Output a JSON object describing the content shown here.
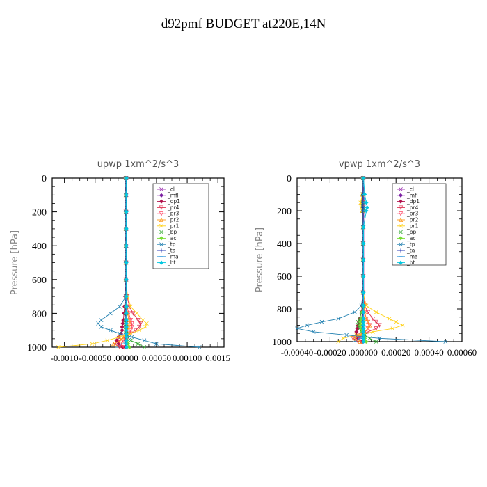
{
  "page": {
    "title": "d92pmf  BUDGET at220E,14N"
  },
  "chart_data": [
    {
      "type": "line",
      "title": "upwp   1xm^2/s^3",
      "ylabel": "Pressure [hPa]",
      "xlim": [
        -0.0012,
        0.0016
      ],
      "ylim": [
        1000,
        0
      ],
      "x_ticks": [
        -0.001,
        -0.0005,
        0.0,
        0.0005,
        0.001,
        0.0015
      ],
      "x_tick_labels": [
        "-0.0010",
        "-0.00050",
        ".00000",
        "0.00050",
        "0.00100",
        "0.0015"
      ],
      "y_ticks": [
        0,
        200,
        400,
        600,
        800,
        1000
      ],
      "y_tick_labels": [
        "0",
        "200",
        "400",
        "600",
        "800",
        "1000"
      ],
      "legend_position": "top-right",
      "pressure": [
        0,
        100,
        200,
        300,
        400,
        500,
        600,
        700,
        760,
        800,
        840,
        860,
        880,
        900,
        920,
        940,
        960,
        980,
        1000
      ],
      "series": [
        {
          "name": "_cl",
          "color": "#9b30b0",
          "marker": "x",
          "values": [
            1e-05,
            1e-05,
            1e-05,
            1e-05,
            1e-05,
            1e-05,
            1e-05,
            1e-05,
            1e-05,
            1e-05,
            1e-05,
            1e-05,
            1e-05,
            1e-05,
            1e-05,
            1e-05,
            1e-05,
            1e-05,
            1e-05
          ]
        },
        {
          "name": "_mfl",
          "color": "#7b1fa2",
          "marker": "diamond",
          "values": [
            0.0,
            0.0,
            0.0,
            0.0,
            0.0,
            0.0,
            0.0,
            0.0,
            0.0,
            0.0,
            0.0,
            0.0,
            0.0,
            0.0,
            0.0,
            0.0,
            0.0,
            0.0,
            0.0
          ]
        },
        {
          "name": "_dp1",
          "color": "#b0104a",
          "marker": "diamond",
          "values": [
            0.0,
            0.0,
            0.0,
            0.0,
            0.0,
            0.0,
            0.0,
            -1e-05,
            -2e-05,
            -3e-05,
            -4e-05,
            -5e-05,
            -6e-05,
            -6e-05,
            -8e-05,
            -0.00012,
            -0.00015,
            -0.00012,
            -5e-05
          ]
        },
        {
          "name": "_pr4",
          "color": "#e03050",
          "marker": "triangle-down",
          "values": [
            0.0,
            0.0,
            0.0,
            0.0,
            0.0,
            0.0,
            0.0,
            2e-05,
            6e-05,
            0.00012,
            0.0002,
            0.00024,
            0.00022,
            0.00016,
            8e-05,
            -2e-05,
            -0.0001,
            -0.00018,
            -0.0001
          ]
        },
        {
          "name": "_pr3",
          "color": "#ff4060",
          "marker": "triangle-down",
          "values": [
            0.0,
            0.0,
            0.0,
            0.0,
            0.0,
            0.0,
            0.0,
            0.0,
            2e-05,
            5e-05,
            8e-05,
            0.0001,
            0.0001,
            8e-05,
            5e-05,
            0.0,
            -4e-05,
            -8e-05,
            -3e-05
          ]
        },
        {
          "name": "_pr2",
          "color": "#ff9a1a",
          "marker": "triangle-up",
          "values": [
            0.0,
            0.0,
            0.0,
            0.0,
            0.0,
            0.0,
            0.0,
            0.0,
            1e-05,
            3e-05,
            5e-05,
            6e-05,
            5e-05,
            3e-05,
            0.0,
            -3e-05,
            -8e-05,
            -0.0002,
            -0.00015
          ]
        },
        {
          "name": "_pr1",
          "color": "#ffd21a",
          "marker": "x",
          "values": [
            0.0,
            0.0,
            0.0,
            0.0,
            0.0,
            0.0,
            0.0,
            3e-05,
            8e-05,
            0.00018,
            0.00028,
            0.00034,
            0.00032,
            0.00022,
            8e-05,
            -0.0001,
            -0.0003,
            -0.00055,
            -0.0011
          ]
        },
        {
          "name": "_bp",
          "color": "#33aa33",
          "marker": "x",
          "values": [
            0.0,
            0.0,
            0.0,
            0.0,
            0.0,
            0.0,
            0.0,
            0.0,
            0.0,
            0.0,
            0.0,
            0.0,
            0.0,
            0.0,
            1e-05,
            3e-05,
            8e-05,
            0.0002,
            0.0003
          ]
        },
        {
          "name": "_ac",
          "color": "#77dd33",
          "marker": "diamond",
          "values": [
            0.0,
            0.0,
            0.0,
            0.0,
            0.0,
            0.0,
            0.0,
            0.0,
            0.0,
            0.0,
            0.0,
            0.0,
            0.0,
            0.0,
            0.0,
            1e-05,
            2e-05,
            4e-05,
            6e-05
          ]
        },
        {
          "name": "_tp",
          "color": "#1f7fb0",
          "marker": "x",
          "values": [
            0.0,
            0.0,
            0.0,
            0.0,
            0.0,
            0.0,
            0.0,
            0.0,
            -0.0001,
            -0.00025,
            -0.0004,
            -0.00045,
            -0.0004,
            -0.00025,
            -0.0001,
            0.0001,
            0.0003,
            0.0005,
            0.0012
          ]
        },
        {
          "name": "_ta",
          "color": "#1a2bb0",
          "marker": "plus",
          "values": [
            0.0,
            0.0,
            0.0,
            0.0,
            0.0,
            0.0,
            0.0,
            0.0,
            0.0,
            0.0,
            0.0,
            0.0,
            0.0,
            0.0,
            0.0,
            0.0,
            0.0,
            0.0,
            0.0
          ]
        },
        {
          "name": "_ma",
          "color": "#3399dd",
          "marker": "dash",
          "values": [
            0.0,
            0.0,
            0.0,
            0.0,
            0.0,
            0.0,
            0.0,
            0.0,
            0.0,
            0.0,
            0.0,
            0.0,
            0.0,
            0.0,
            0.0,
            0.0,
            0.0,
            -5e-05,
            -0.00015
          ]
        },
        {
          "name": "_bt",
          "color": "#00c8e0",
          "marker": "diamond",
          "values": [
            1e-05,
            1e-05,
            1e-05,
            1e-05,
            1e-05,
            1e-05,
            1e-05,
            1e-05,
            1e-05,
            1e-05,
            1e-05,
            1e-05,
            1e-05,
            1e-05,
            1e-05,
            1e-05,
            1e-05,
            1e-05,
            1e-05
          ]
        }
      ]
    },
    {
      "type": "line",
      "title": "vpwp   1xm^2/s^3",
      "ylabel": "Pressure [hPa]",
      "xlim": [
        -0.0004,
        0.0006
      ],
      "ylim": [
        1000,
        0
      ],
      "x_ticks": [
        -0.0004,
        -0.0002,
        0.0,
        0.0002,
        0.0004,
        0.0006
      ],
      "x_tick_labels": [
        "-0.00040",
        "-0.00020",
        ".000000",
        "0.00020",
        "0.00040",
        "0.00060"
      ],
      "y_ticks": [
        0,
        200,
        400,
        600,
        800,
        1000
      ],
      "y_tick_labels": [
        "0",
        "200",
        "400",
        "600",
        "800",
        "1000"
      ],
      "legend_position": "top-right",
      "pressure": [
        0,
        100,
        150,
        180,
        200,
        300,
        400,
        500,
        600,
        700,
        780,
        820,
        860,
        880,
        900,
        920,
        940,
        960,
        980,
        1000
      ],
      "series": [
        {
          "name": "_cl",
          "color": "#9b30b0",
          "marker": "x",
          "values": [
            3e-06,
            3e-06,
            3e-06,
            3e-06,
            3e-06,
            3e-06,
            3e-06,
            3e-06,
            3e-06,
            3e-06,
            3e-06,
            3e-06,
            3e-06,
            3e-06,
            3e-06,
            3e-06,
            3e-06,
            3e-06,
            3e-06,
            3e-06
          ]
        },
        {
          "name": "_mfl",
          "color": "#7b1fa2",
          "marker": "diamond",
          "values": [
            0.0,
            0.0,
            0.0,
            0.0,
            0.0,
            0.0,
            0.0,
            0.0,
            0.0,
            0.0,
            0.0,
            0.0,
            0.0,
            0.0,
            0.0,
            0.0,
            0.0,
            0.0,
            0.0,
            0.0
          ]
        },
        {
          "name": "_dp1",
          "color": "#b0104a",
          "marker": "diamond",
          "values": [
            0.0,
            0.0,
            0.0,
            0.0,
            0.0,
            0.0,
            0.0,
            0.0,
            0.0,
            0.0,
            -5e-06,
            -1e-05,
            -2e-05,
            -2.5e-05,
            -3e-05,
            -3.5e-05,
            -4e-05,
            -4e-05,
            -3e-05,
            -1e-05
          ]
        },
        {
          "name": "_pr4",
          "color": "#e03050",
          "marker": "triangle-down",
          "values": [
            0.0,
            0.0,
            0.0,
            0.0,
            0.0,
            0.0,
            0.0,
            0.0,
            0.0,
            0.0,
            1e-05,
            3e-05,
            6e-05,
            8e-05,
            0.0001,
            8e-05,
            3e-05,
            -2e-05,
            -6e-05,
            -3e-05
          ]
        },
        {
          "name": "_pr3",
          "color": "#ff4060",
          "marker": "triangle-down",
          "values": [
            0.0,
            0.0,
            0.0,
            0.0,
            0.0,
            0.0,
            0.0,
            0.0,
            0.0,
            0.0,
            5e-06,
            1e-05,
            2e-05,
            3e-05,
            4e-05,
            3e-05,
            1e-05,
            -1e-05,
            -2e-05,
            -1e-05
          ]
        },
        {
          "name": "_pr2",
          "color": "#ff9a1a",
          "marker": "triangle-up",
          "values": [
            0.0,
            -5e-06,
            -1e-05,
            -8e-06,
            -5e-06,
            0.0,
            0.0,
            0.0,
            0.0,
            0.0,
            5e-06,
            1e-05,
            2e-05,
            3e-05,
            4e-05,
            3e-05,
            1e-05,
            -2e-05,
            -5e-05,
            -2e-05
          ]
        },
        {
          "name": "_pr1",
          "color": "#ffd21a",
          "marker": "x",
          "values": [
            0.0,
            -5e-06,
            -1.5e-05,
            -1e-05,
            -5e-06,
            0.0,
            0.0,
            0.0,
            0.0,
            0.0,
            2e-05,
            8e-05,
            0.00016,
            0.0002,
            0.00024,
            0.00018,
            6e-05,
            -4e-05,
            -0.00012,
            -0.00015
          ]
        },
        {
          "name": "_bp",
          "color": "#33aa33",
          "marker": "x",
          "values": [
            0.0,
            0.0,
            0.0,
            0.0,
            0.0,
            0.0,
            0.0,
            0.0,
            0.0,
            0.0,
            0.0,
            -1e-05,
            -2e-05,
            -3e-05,
            -3e-05,
            -2e-05,
            -1e-05,
            1e-05,
            4e-05,
            8e-05
          ]
        },
        {
          "name": "_ac",
          "color": "#77dd33",
          "marker": "diamond",
          "values": [
            0.0,
            0.0,
            0.0,
            0.0,
            0.0,
            0.0,
            0.0,
            0.0,
            0.0,
            0.0,
            0.0,
            -5e-06,
            -1e-05,
            -1.5e-05,
            -1.5e-05,
            -1e-05,
            -5e-06,
            0.0,
            1e-05,
            2e-05
          ]
        },
        {
          "name": "_tp",
          "color": "#1f7fb0",
          "marker": "x",
          "values": [
            0.0,
            0.0,
            0.0,
            0.0,
            0.0,
            0.0,
            0.0,
            0.0,
            0.0,
            0.0,
            -1e-05,
            -5e-05,
            -0.00015,
            -0.00025,
            -0.00034,
            -0.0004,
            -0.0003,
            -0.0001,
            0.0001,
            0.0005
          ]
        },
        {
          "name": "_ta",
          "color": "#1a2bb0",
          "marker": "plus",
          "values": [
            0.0,
            0.0,
            0.0,
            0.0,
            0.0,
            0.0,
            0.0,
            0.0,
            0.0,
            0.0,
            0.0,
            0.0,
            0.0,
            0.0,
            0.0,
            0.0,
            0.0,
            0.0,
            0.0,
            0.0
          ]
        },
        {
          "name": "_ma",
          "color": "#3399dd",
          "marker": "dash",
          "values": [
            0.0,
            5e-06,
            1e-05,
            1.5e-05,
            1e-05,
            0.0,
            0.0,
            0.0,
            0.0,
            0.0,
            0.0,
            0.0,
            0.0,
            0.0,
            0.0,
            0.0,
            0.0,
            0.0,
            -2e-05,
            -5e-05
          ]
        },
        {
          "name": "_bt",
          "color": "#00c8e0",
          "marker": "diamond",
          "values": [
            3e-06,
            1e-05,
            2e-05,
            2.5e-05,
            2e-05,
            3e-06,
            3e-06,
            3e-06,
            3e-06,
            3e-06,
            3e-06,
            3e-06,
            3e-06,
            3e-06,
            3e-06,
            3e-06,
            3e-06,
            3e-06,
            3e-06,
            3e-06
          ]
        }
      ]
    }
  ]
}
